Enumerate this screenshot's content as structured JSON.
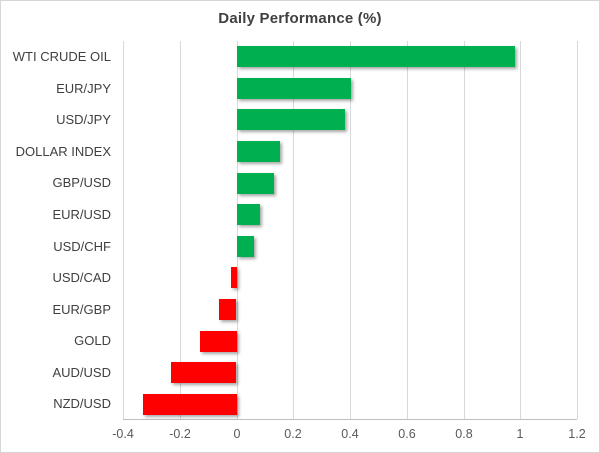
{
  "chart": {
    "background": "#FFFFFF",
    "border_color": "#D6D6D6",
    "gridline_color": "#D9D9D9",
    "axis_line_color": "#BFBFBF",
    "title_color": "#404040",
    "category_label_color": "#404040",
    "tick_label_color": "#595959"
  },
  "chart_data": {
    "type": "bar",
    "orientation": "horizontal",
    "title": "Daily Performance (%)",
    "categories": [
      "WTI CRUDE OIL",
      "EUR/JPY",
      "USD/JPY",
      "DOLLAR INDEX",
      "GBP/USD",
      "EUR/USD",
      "USD/CHF",
      "USD/CAD",
      "EUR/GBP",
      "GOLD",
      "AUD/USD",
      "NZD/USD"
    ],
    "values": [
      0.98,
      0.4,
      0.38,
      0.15,
      0.13,
      0.08,
      0.06,
      -0.02,
      -0.06,
      -0.13,
      -0.23,
      -0.33
    ],
    "xlim": [
      -0.4,
      1.2
    ],
    "x_ticks": [
      -0.4,
      -0.2,
      0,
      0.2,
      0.4,
      0.6,
      0.8,
      1,
      1.2
    ],
    "x_tick_labels": [
      "-0.4",
      "-0.2",
      "0",
      "0.2",
      "0.4",
      "0.6",
      "0.8",
      "1",
      "1.2"
    ],
    "grid": true,
    "legend": false,
    "xlabel": "",
    "ylabel": "",
    "positive_color": "#00B050",
    "negative_color": "#FF0000"
  }
}
